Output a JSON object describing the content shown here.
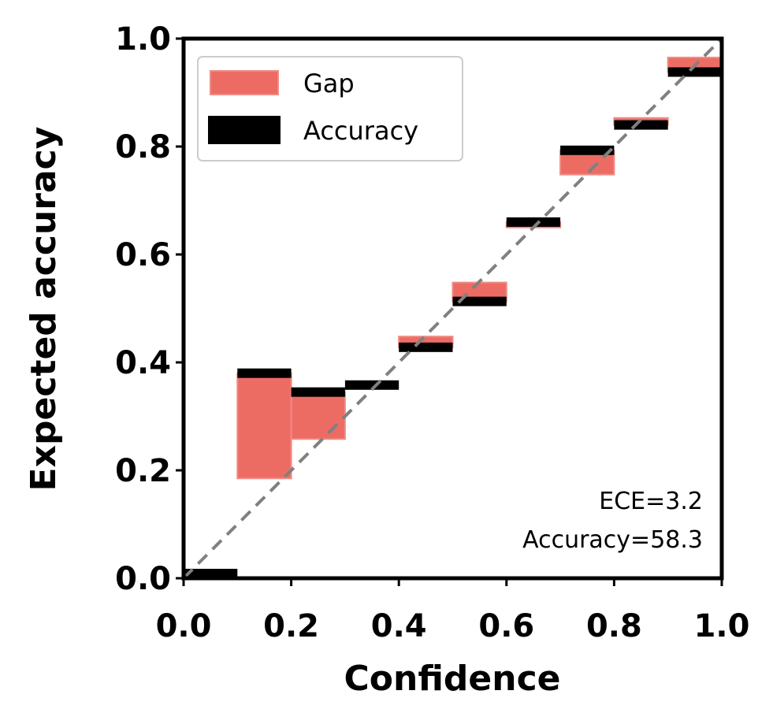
{
  "chart_data": {
    "type": "bar",
    "xlabel": "Confidence",
    "ylabel": "Expected accuracy",
    "xlim": [
      0,
      1
    ],
    "ylim": [
      0,
      1
    ],
    "xticks": [
      "0.0",
      "0.2",
      "0.4",
      "0.6",
      "0.8",
      "1.0"
    ],
    "yticks": [
      "0.0",
      "0.2",
      "0.4",
      "0.6",
      "0.8",
      "1.0"
    ],
    "bin_width": 0.1,
    "bins": [
      {
        "start": 0.0,
        "accuracy": 0.0,
        "confidence": 0.0
      },
      {
        "start": 0.1,
        "accuracy": 0.38,
        "confidence": 0.185
      },
      {
        "start": 0.2,
        "accuracy": 0.345,
        "confidence": 0.258
      },
      {
        "start": 0.3,
        "accuracy": 0.358,
        "confidence": 0.358
      },
      {
        "start": 0.4,
        "accuracy": 0.428,
        "confidence": 0.448
      },
      {
        "start": 0.5,
        "accuracy": 0.513,
        "confidence": 0.548
      },
      {
        "start": 0.6,
        "accuracy": 0.66,
        "confidence": 0.65
      },
      {
        "start": 0.7,
        "accuracy": 0.793,
        "confidence": 0.748
      },
      {
        "start": 0.8,
        "accuracy": 0.84,
        "confidence": 0.853
      },
      {
        "start": 0.9,
        "accuracy": 0.938,
        "confidence": 0.965
      }
    ],
    "legend": {
      "position": "upper-left",
      "entries": [
        {
          "label": "Gap",
          "color": "#ec6c64"
        },
        {
          "label": "Accuracy",
          "color": "#000000"
        }
      ]
    },
    "diagonal": {
      "style": "dashed",
      "color": "#808080"
    },
    "annotations": [
      "ECE=3.2",
      "Accuracy=58.3"
    ],
    "colors": {
      "gap": "#ec6c64",
      "gap_edge": "#f08b85",
      "accuracy": "#000000",
      "axes": "#000000"
    }
  }
}
